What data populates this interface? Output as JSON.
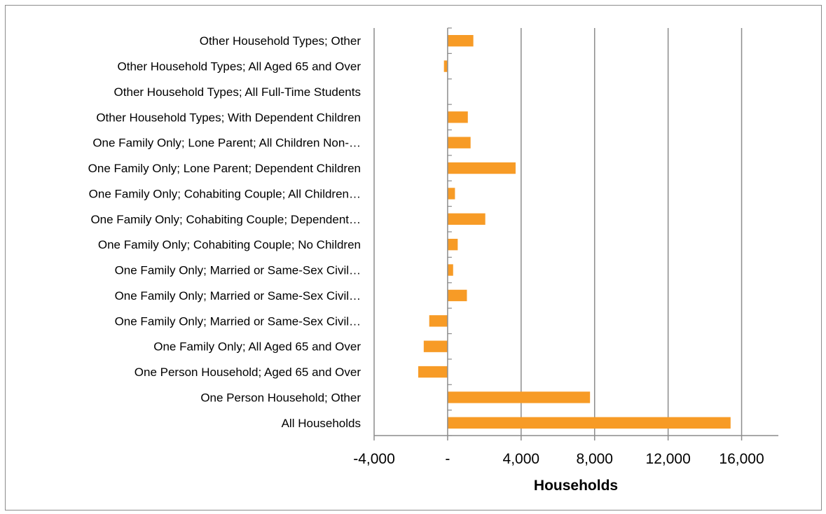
{
  "chart_data": {
    "type": "bar",
    "orientation": "horizontal",
    "title": "",
    "xlabel": "Households",
    "ylabel": "",
    "xlim": [
      -4000,
      18000
    ],
    "x_ticks": [
      -4000,
      0,
      4000,
      8000,
      12000,
      16000
    ],
    "x_tick_labels": [
      "-4,000",
      "-",
      "4,000",
      "8,000",
      "12,000",
      "16,000"
    ],
    "grid": "vertical",
    "legend": "none",
    "bar_color": "#F79B26",
    "categories": [
      "Other Household Types; Other",
      "Other Household Types; All Aged 65 and Over",
      "Other Household Types; All Full-Time Students",
      "Other Household Types; With Dependent Children",
      "One Family Only; Lone Parent; All Children Non-…",
      "One Family Only; Lone Parent; Dependent Children",
      "One Family Only; Cohabiting Couple; All Children…",
      "One Family Only; Cohabiting Couple; Dependent…",
      "One Family Only; Cohabiting Couple; No Children",
      "One Family Only; Married or Same-Sex Civil…",
      "One Family Only; Married or Same-Sex Civil…",
      "One Family Only; Married or Same-Sex Civil…",
      "One Family Only; All Aged 65 and Over",
      "One Person Household; Aged 65 and Over",
      "One Person Household; Other",
      "All Households"
    ],
    "values": [
      1400,
      -200,
      0,
      1100,
      1250,
      3700,
      400,
      2050,
      550,
      300,
      1050,
      -1000,
      -1300,
      -1600,
      7750,
      15400
    ]
  }
}
